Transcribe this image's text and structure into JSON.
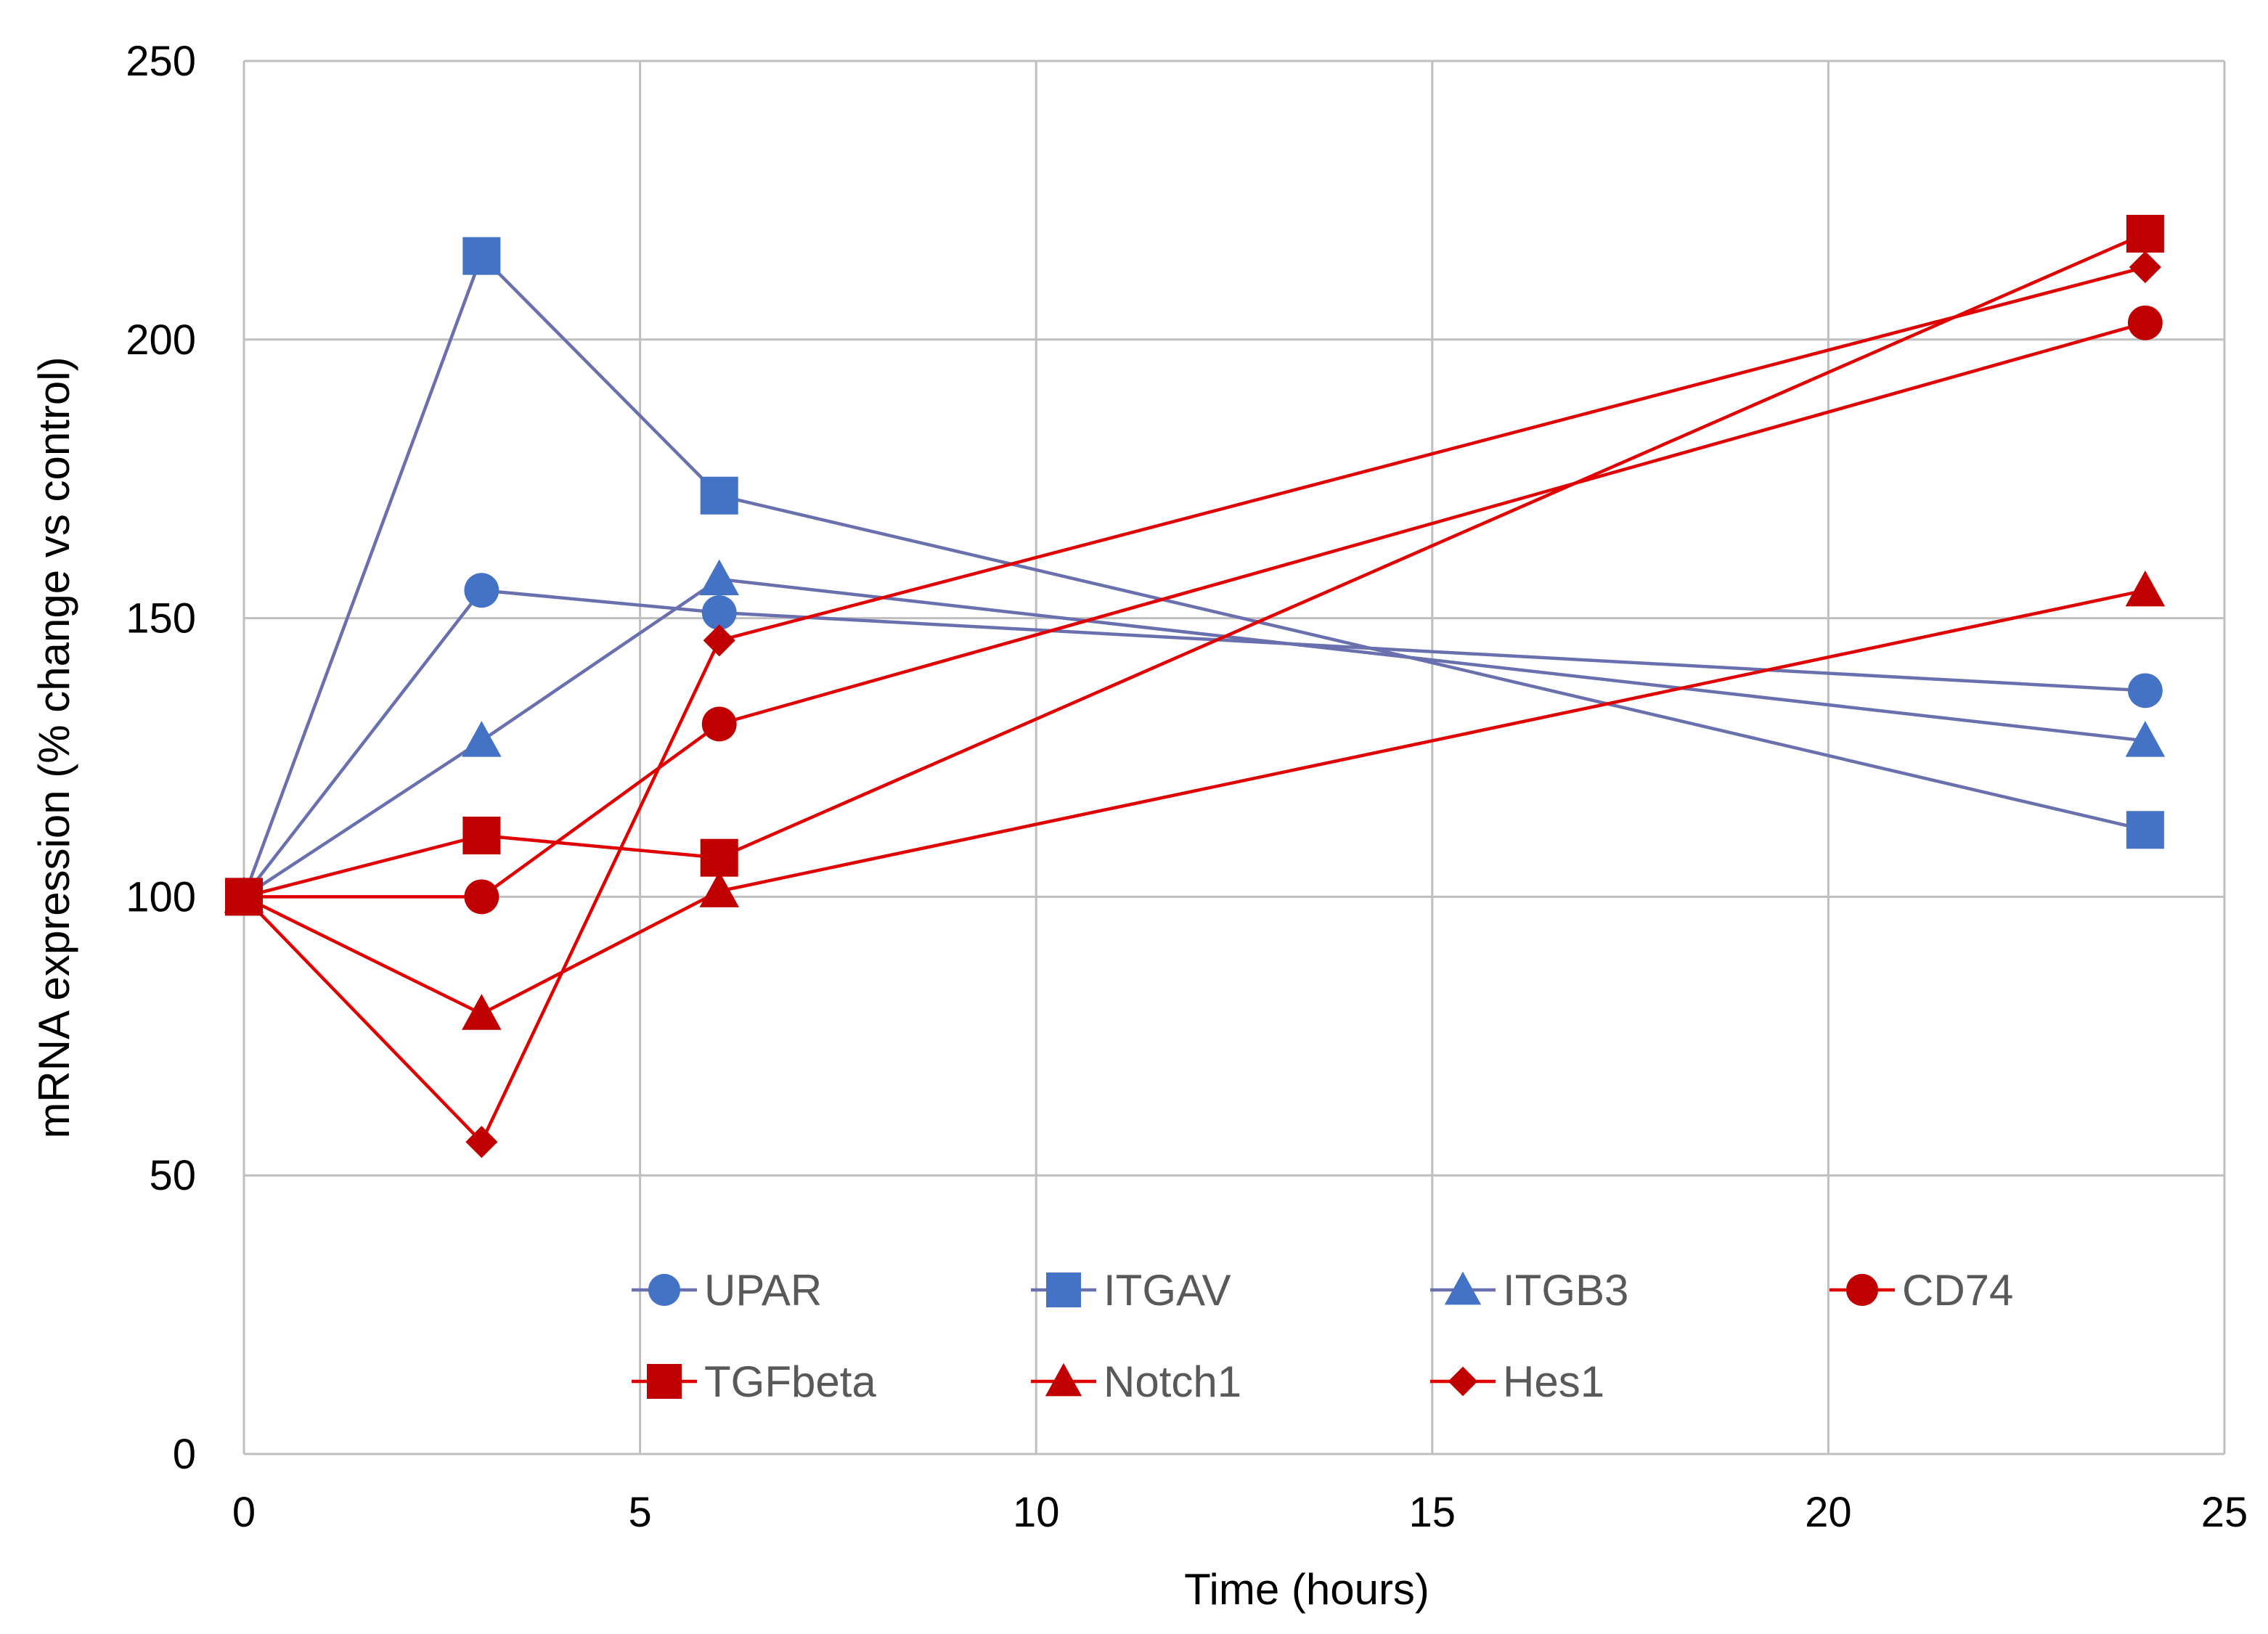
{
  "chart_data": {
    "type": "line",
    "title": "",
    "xlabel": "Time (hours)",
    "ylabel": "mRNA expression (% change vs control)",
    "xlim": [
      0,
      25
    ],
    "ylim": [
      0,
      250
    ],
    "xticks": [
      0,
      5,
      10,
      15,
      20,
      25
    ],
    "yticks": [
      0,
      50,
      100,
      150,
      200,
      250
    ],
    "grid": true,
    "legend_position": "bottom-inside",
    "series": [
      {
        "name": "UPAR",
        "color": "#6A6FAE",
        "marker_color": "#4472C4",
        "marker": "circle",
        "x": [
          0,
          3,
          6,
          24
        ],
        "y": [
          100,
          155,
          151,
          137
        ]
      },
      {
        "name": "ITGAV",
        "color": "#6A6FAE",
        "marker_color": "#4472C4",
        "marker": "square",
        "x": [
          0,
          3,
          6,
          24
        ],
        "y": [
          100,
          215,
          172,
          112
        ]
      },
      {
        "name": "ITGB3",
        "color": "#6A6FAE",
        "marker_color": "#4472C4",
        "marker": "triangle",
        "x": [
          0,
          3,
          6,
          24
        ],
        "y": [
          100,
          128,
          157,
          128
        ]
      },
      {
        "name": "CD74",
        "color": "#E00000",
        "marker_color": "#C00000",
        "marker": "circle",
        "x": [
          0,
          3,
          6,
          24
        ],
        "y": [
          100,
          100,
          131,
          203
        ]
      },
      {
        "name": "TGFbeta",
        "color": "#E00000",
        "marker_color": "#C00000",
        "marker": "square",
        "x": [
          0,
          3,
          6,
          24
        ],
        "y": [
          100,
          111,
          107,
          219
        ]
      },
      {
        "name": "Notch1",
        "color": "#E00000",
        "marker_color": "#C00000",
        "marker": "triangle",
        "x": [
          0,
          3,
          6,
          24
        ],
        "y": [
          100,
          79,
          101,
          155
        ]
      },
      {
        "name": "Hes1",
        "color": "#E00000",
        "marker_color": "#C00000",
        "marker": "diamond",
        "x": [
          0,
          3,
          6,
          24
        ],
        "y": [
          100,
          56,
          146,
          213
        ]
      }
    ]
  }
}
